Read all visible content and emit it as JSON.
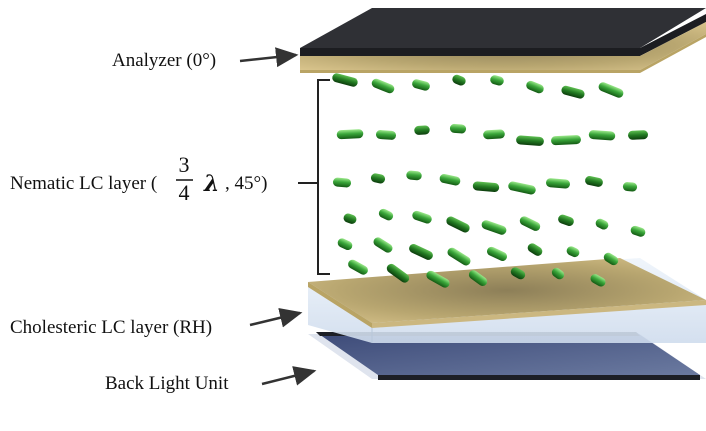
{
  "labels": {
    "analyzer": "Analyzer (0°)",
    "nematic_prefix": "Nematic LC layer (",
    "nematic_frac_num": "3",
    "nematic_frac_den": "4",
    "nematic_lambda": "λ",
    "nematic_suffix": ", 45°)",
    "cholesteric": "Cholesteric LC layer (RH)",
    "backlight": "Back Light Unit"
  },
  "colors": {
    "analyzer_top": "#2f3035",
    "analyzer_film": "#d8c58a",
    "analyzer_film_edge": "#b9a465",
    "cholesteric_film": "#cdb887",
    "cholesteric_box": "#dfeaf5",
    "backlight_plate": "#4f5d86",
    "backlight_edge": "#1d1f26",
    "rod_dark": "#1f6a1f",
    "rod_mid": "#2e9a2e",
    "rod_light": "#6ad45a",
    "arrow": "#333333"
  },
  "icons": [
    "arrow-right-icon",
    "bracket-icon",
    "lc-molecule-rod-icon"
  ]
}
